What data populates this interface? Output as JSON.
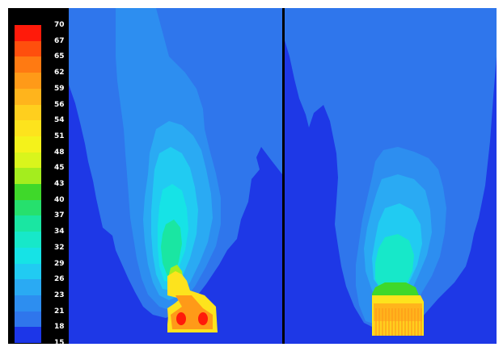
{
  "legend": {
    "labels": [
      "70",
      "67",
      "65",
      "62",
      "59",
      "56",
      "54",
      "51",
      "48",
      "45",
      "43",
      "40",
      "37",
      "34",
      "32",
      "29",
      "26",
      "23",
      "21",
      "18",
      "15"
    ],
    "colors": [
      "#ff1a0a",
      "#ff4f0d",
      "#ff7a12",
      "#ff9a18",
      "#ffb41c",
      "#ffcf1e",
      "#fde31d",
      "#f4f21b",
      "#d9f51c",
      "#a4ed1e",
      "#3fd82a",
      "#26e06d",
      "#1ae6a2",
      "#17e8c9",
      "#16e3e6",
      "#21cbf2",
      "#2aaaf3",
      "#2d8ef0",
      "#2f76ec",
      "#1c36e8"
    ]
  },
  "scale_colors": {
    "background": "#1e38e6",
    "outer_plume": "#2f76ec",
    "mid_plume": "#2d8ef0",
    "inner_plume": "#2aaaf3"
  }
}
